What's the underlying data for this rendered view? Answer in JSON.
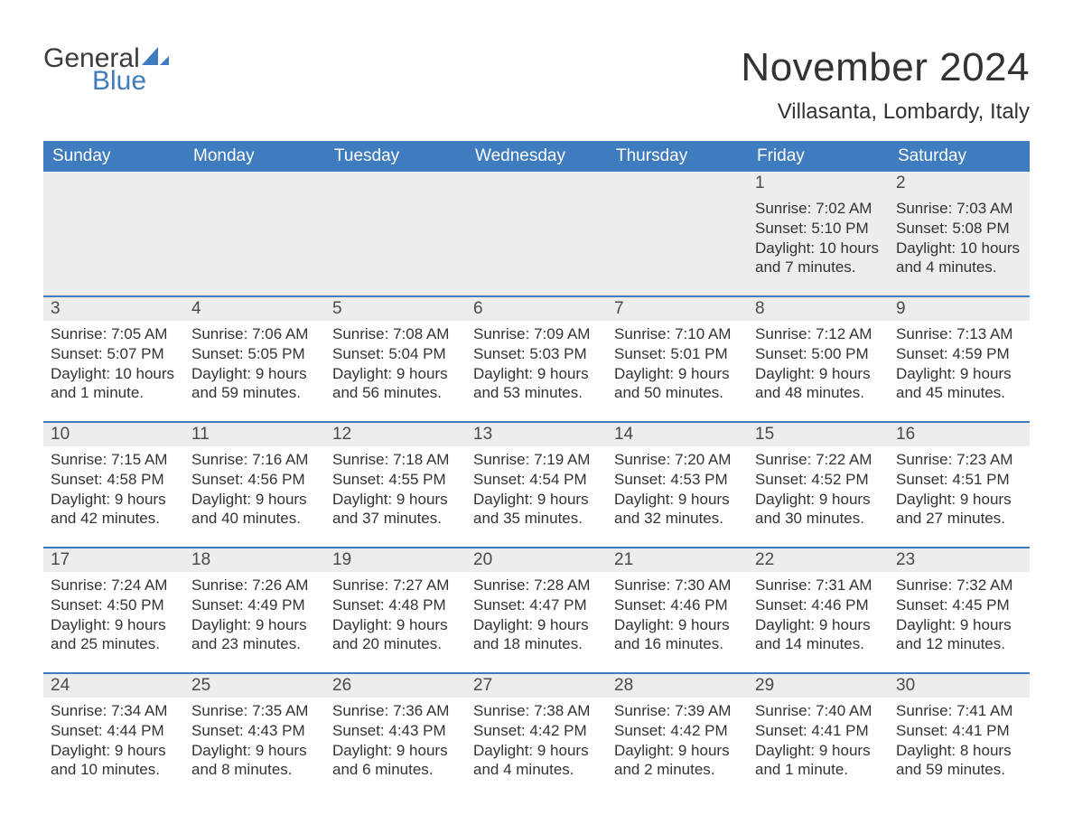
{
  "brand": {
    "part1": "General",
    "part2": "Blue",
    "sail_color": "#3f7cbf",
    "text_color": "#3b3b3b"
  },
  "title": "November 2024",
  "location": "Villasanta, Lombardy, Italy",
  "colors": {
    "header_bg": "#3f7cbf",
    "header_text": "#ffffff",
    "daynum_bg": "#ededed",
    "daynum_border": "#3f7cbf",
    "body_bg": "#ffffff",
    "text": "#333333"
  },
  "weekdays": [
    "Sunday",
    "Monday",
    "Tuesday",
    "Wednesday",
    "Thursday",
    "Friday",
    "Saturday"
  ],
  "weeks": [
    [
      null,
      null,
      null,
      null,
      null,
      {
        "n": "1",
        "sunrise": "Sunrise: 7:02 AM",
        "sunset": "Sunset: 5:10 PM",
        "daylight": "Daylight: 10 hours and 7 minutes."
      },
      {
        "n": "2",
        "sunrise": "Sunrise: 7:03 AM",
        "sunset": "Sunset: 5:08 PM",
        "daylight": "Daylight: 10 hours and 4 minutes."
      }
    ],
    [
      {
        "n": "3",
        "sunrise": "Sunrise: 7:05 AM",
        "sunset": "Sunset: 5:07 PM",
        "daylight": "Daylight: 10 hours and 1 minute."
      },
      {
        "n": "4",
        "sunrise": "Sunrise: 7:06 AM",
        "sunset": "Sunset: 5:05 PM",
        "daylight": "Daylight: 9 hours and 59 minutes."
      },
      {
        "n": "5",
        "sunrise": "Sunrise: 7:08 AM",
        "sunset": "Sunset: 5:04 PM",
        "daylight": "Daylight: 9 hours and 56 minutes."
      },
      {
        "n": "6",
        "sunrise": "Sunrise: 7:09 AM",
        "sunset": "Sunset: 5:03 PM",
        "daylight": "Daylight: 9 hours and 53 minutes."
      },
      {
        "n": "7",
        "sunrise": "Sunrise: 7:10 AM",
        "sunset": "Sunset: 5:01 PM",
        "daylight": "Daylight: 9 hours and 50 minutes."
      },
      {
        "n": "8",
        "sunrise": "Sunrise: 7:12 AM",
        "sunset": "Sunset: 5:00 PM",
        "daylight": "Daylight: 9 hours and 48 minutes."
      },
      {
        "n": "9",
        "sunrise": "Sunrise: 7:13 AM",
        "sunset": "Sunset: 4:59 PM",
        "daylight": "Daylight: 9 hours and 45 minutes."
      }
    ],
    [
      {
        "n": "10",
        "sunrise": "Sunrise: 7:15 AM",
        "sunset": "Sunset: 4:58 PM",
        "daylight": "Daylight: 9 hours and 42 minutes."
      },
      {
        "n": "11",
        "sunrise": "Sunrise: 7:16 AM",
        "sunset": "Sunset: 4:56 PM",
        "daylight": "Daylight: 9 hours and 40 minutes."
      },
      {
        "n": "12",
        "sunrise": "Sunrise: 7:18 AM",
        "sunset": "Sunset: 4:55 PM",
        "daylight": "Daylight: 9 hours and 37 minutes."
      },
      {
        "n": "13",
        "sunrise": "Sunrise: 7:19 AM",
        "sunset": "Sunset: 4:54 PM",
        "daylight": "Daylight: 9 hours and 35 minutes."
      },
      {
        "n": "14",
        "sunrise": "Sunrise: 7:20 AM",
        "sunset": "Sunset: 4:53 PM",
        "daylight": "Daylight: 9 hours and 32 minutes."
      },
      {
        "n": "15",
        "sunrise": "Sunrise: 7:22 AM",
        "sunset": "Sunset: 4:52 PM",
        "daylight": "Daylight: 9 hours and 30 minutes."
      },
      {
        "n": "16",
        "sunrise": "Sunrise: 7:23 AM",
        "sunset": "Sunset: 4:51 PM",
        "daylight": "Daylight: 9 hours and 27 minutes."
      }
    ],
    [
      {
        "n": "17",
        "sunrise": "Sunrise: 7:24 AM",
        "sunset": "Sunset: 4:50 PM",
        "daylight": "Daylight: 9 hours and 25 minutes."
      },
      {
        "n": "18",
        "sunrise": "Sunrise: 7:26 AM",
        "sunset": "Sunset: 4:49 PM",
        "daylight": "Daylight: 9 hours and 23 minutes."
      },
      {
        "n": "19",
        "sunrise": "Sunrise: 7:27 AM",
        "sunset": "Sunset: 4:48 PM",
        "daylight": "Daylight: 9 hours and 20 minutes."
      },
      {
        "n": "20",
        "sunrise": "Sunrise: 7:28 AM",
        "sunset": "Sunset: 4:47 PM",
        "daylight": "Daylight: 9 hours and 18 minutes."
      },
      {
        "n": "21",
        "sunrise": "Sunrise: 7:30 AM",
        "sunset": "Sunset: 4:46 PM",
        "daylight": "Daylight: 9 hours and 16 minutes."
      },
      {
        "n": "22",
        "sunrise": "Sunrise: 7:31 AM",
        "sunset": "Sunset: 4:46 PM",
        "daylight": "Daylight: 9 hours and 14 minutes."
      },
      {
        "n": "23",
        "sunrise": "Sunrise: 7:32 AM",
        "sunset": "Sunset: 4:45 PM",
        "daylight": "Daylight: 9 hours and 12 minutes."
      }
    ],
    [
      {
        "n": "24",
        "sunrise": "Sunrise: 7:34 AM",
        "sunset": "Sunset: 4:44 PM",
        "daylight": "Daylight: 9 hours and 10 minutes."
      },
      {
        "n": "25",
        "sunrise": "Sunrise: 7:35 AM",
        "sunset": "Sunset: 4:43 PM",
        "daylight": "Daylight: 9 hours and 8 minutes."
      },
      {
        "n": "26",
        "sunrise": "Sunrise: 7:36 AM",
        "sunset": "Sunset: 4:43 PM",
        "daylight": "Daylight: 9 hours and 6 minutes."
      },
      {
        "n": "27",
        "sunrise": "Sunrise: 7:38 AM",
        "sunset": "Sunset: 4:42 PM",
        "daylight": "Daylight: 9 hours and 4 minutes."
      },
      {
        "n": "28",
        "sunrise": "Sunrise: 7:39 AM",
        "sunset": "Sunset: 4:42 PM",
        "daylight": "Daylight: 9 hours and 2 minutes."
      },
      {
        "n": "29",
        "sunrise": "Sunrise: 7:40 AM",
        "sunset": "Sunset: 4:41 PM",
        "daylight": "Daylight: 9 hours and 1 minute."
      },
      {
        "n": "30",
        "sunrise": "Sunrise: 7:41 AM",
        "sunset": "Sunset: 4:41 PM",
        "daylight": "Daylight: 8 hours and 59 minutes."
      }
    ]
  ]
}
